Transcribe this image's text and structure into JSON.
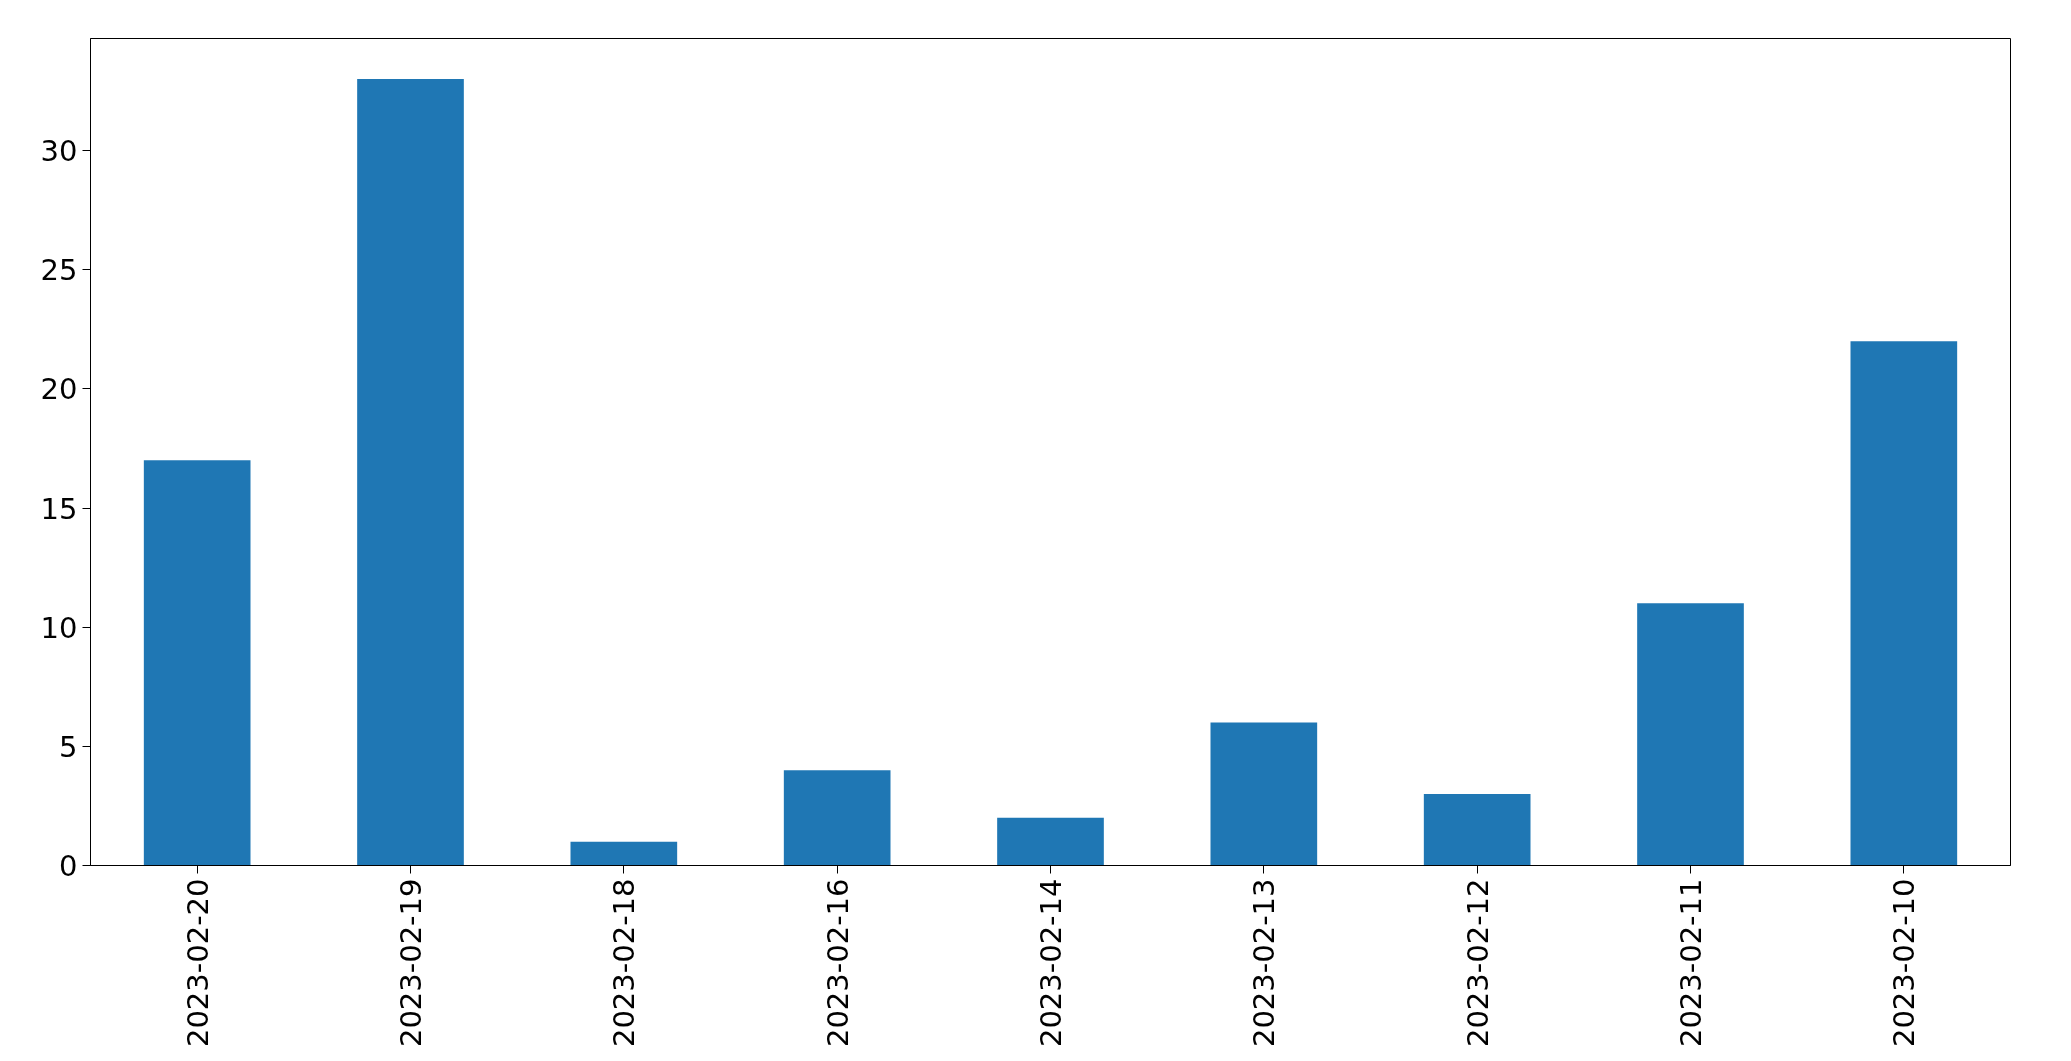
{
  "chart_data": {
    "type": "bar",
    "categories": [
      "2023-02-20",
      "2023-02-19",
      "2023-02-18",
      "2023-02-16",
      "2023-02-14",
      "2023-02-13",
      "2023-02-12",
      "2023-02-11",
      "2023-02-10"
    ],
    "values": [
      17,
      33,
      1,
      4,
      2,
      6,
      3,
      11,
      22
    ],
    "color": "#1f77b4",
    "ylim": [
      0,
      34.7
    ],
    "yticks": [
      0,
      5,
      10,
      15,
      20,
      25,
      30
    ],
    "grid": false
  }
}
